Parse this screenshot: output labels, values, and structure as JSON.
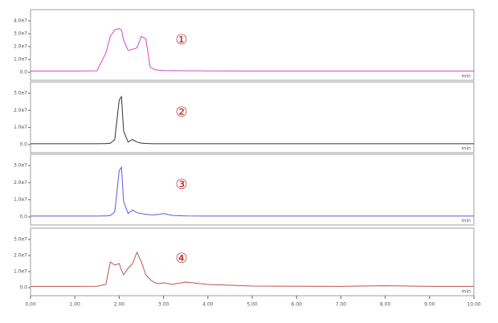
{
  "chart_data": [
    {
      "type": "line",
      "annotation": "①",
      "x_unit": "min",
      "x": [
        0,
        0.5,
        1.0,
        1.5,
        1.7,
        1.8,
        1.9,
        2.0,
        2.05,
        2.1,
        2.2,
        2.3,
        2.4,
        2.5,
        2.6,
        2.7,
        2.8,
        2.9,
        3.0,
        3.2,
        3.5,
        4.0,
        5.0,
        6.0,
        7.0,
        8.0,
        9.0,
        10.0
      ],
      "series": [
        {
          "color": "#e040c8",
          "values": [
            1000000.0,
            1000000.0,
            1000000.0,
            1200000.0,
            15000000.0,
            28000000.0,
            33000000.0,
            34000000.0,
            33000000.0,
            25000000.0,
            17000000.0,
            18000000.0,
            19000000.0,
            28000000.0,
            26000000.0,
            4000000.0,
            2000000.0,
            1600000.0,
            1400000.0,
            1300000.0,
            1200000.0,
            1100000.0,
            1000000.0,
            1000000.0,
            1000000.0,
            1000000.0,
            1000000.0,
            1000000.0
          ]
        }
      ],
      "xlim": [
        0,
        10
      ],
      "ylim": [
        0,
        40000000.0
      ],
      "yticks": [
        {
          "value": 0,
          "label": "0.0"
        },
        {
          "value": 10000000.0,
          "label": "1.0e7"
        },
        {
          "value": 20000000.0,
          "label": "2.0e7"
        },
        {
          "value": 30000000.0,
          "label": "3.0e7"
        },
        {
          "value": 40000000.0,
          "label": "4.0e7"
        }
      ]
    },
    {
      "type": "line",
      "annotation": "②",
      "x_unit": "min",
      "x": [
        0,
        0.5,
        1.0,
        1.5,
        1.7,
        1.8,
        1.9,
        2.0,
        2.05,
        2.1,
        2.2,
        2.3,
        2.4,
        2.5,
        2.6,
        2.7,
        2.8,
        2.9,
        3.0,
        3.2,
        3.5,
        4.0,
        5.0,
        6.0,
        7.0,
        8.0,
        9.0,
        10.0
      ],
      "series": [
        {
          "color": "#333333",
          "values": [
            500000.0,
            500000.0,
            500000.0,
            500000.0,
            600000.0,
            800000.0,
            3000000.0,
            26000000.0,
            28000000.0,
            8000000.0,
            1500000.0,
            3000000.0,
            1500000.0,
            900000.0,
            700000.0,
            600000.0,
            500000.0,
            500000.0,
            500000.0,
            500000.0,
            500000.0,
            500000.0,
            500000.0,
            500000.0,
            500000.0,
            500000.0,
            500000.0,
            500000.0
          ]
        }
      ],
      "xlim": [
        0,
        10
      ],
      "ylim": [
        0,
        30000000.0
      ],
      "yticks": [
        {
          "value": 0,
          "label": "0.0"
        },
        {
          "value": 10000000.0,
          "label": "1.0e7"
        },
        {
          "value": 20000000.0,
          "label": "2.0e7"
        },
        {
          "value": 30000000.0,
          "label": "3.0e7"
        }
      ]
    },
    {
      "type": "line",
      "annotation": "③",
      "x_unit": "min",
      "x": [
        0,
        0.5,
        1.0,
        1.5,
        1.7,
        1.8,
        1.9,
        2.0,
        2.05,
        2.1,
        2.2,
        2.3,
        2.4,
        2.5,
        2.6,
        2.7,
        2.8,
        2.9,
        3.0,
        3.2,
        3.5,
        4.0,
        5.0,
        6.0,
        7.0,
        8.0,
        9.0,
        10.0
      ],
      "series": [
        {
          "color": "#5a5ae0",
          "values": [
            500000.0,
            500000.0,
            500000.0,
            500000.0,
            600000.0,
            800000.0,
            3000000.0,
            27000000.0,
            29000000.0,
            9000000.0,
            2000000.0,
            4000000.0,
            2500000.0,
            2000000.0,
            1500000.0,
            1300000.0,
            1200000.0,
            1500000.0,
            2000000.0,
            900000.0,
            600000.0,
            500000.0,
            500000.0,
            500000.0,
            500000.0,
            500000.0,
            500000.0,
            500000.0
          ]
        }
      ],
      "xlim": [
        0,
        10
      ],
      "ylim": [
        0,
        30000000.0
      ],
      "yticks": [
        {
          "value": 0,
          "label": "0.0"
        },
        {
          "value": 10000000.0,
          "label": "1.0e7"
        },
        {
          "value": 20000000.0,
          "label": "2.0e7"
        },
        {
          "value": 30000000.0,
          "label": "3.0e7"
        }
      ]
    },
    {
      "type": "line",
      "annotation": "④",
      "x_unit": "min",
      "x": [
        0,
        0.5,
        1.0,
        1.5,
        1.7,
        1.8,
        1.9,
        2.0,
        2.05,
        2.1,
        2.2,
        2.3,
        2.4,
        2.5,
        2.6,
        2.7,
        2.8,
        2.9,
        3.0,
        3.2,
        3.5,
        4.0,
        5.0,
        6.0,
        7.0,
        8.0,
        9.0,
        10.0
      ],
      "series": [
        {
          "color": "#c05050",
          "values": [
            800000.0,
            800000.0,
            800000.0,
            900000.0,
            2000000.0,
            16000000.0,
            14000000.0,
            15000000.0,
            11000000.0,
            8000000.0,
            12000000.0,
            15000000.0,
            22000000.0,
            16000000.0,
            8000000.0,
            5000000.0,
            3000000.0,
            2500000.0,
            3000000.0,
            2000000.0,
            3500000.0,
            2000000.0,
            1000000.0,
            900000.0,
            800000.0,
            1200000.0,
            800000.0,
            800000.0
          ]
        }
      ],
      "xlim": [
        0,
        10
      ],
      "ylim": [
        0,
        30000000.0
      ],
      "yticks": [
        {
          "value": 0,
          "label": "0.0"
        },
        {
          "value": 10000000.0,
          "label": "1.0e7"
        },
        {
          "value": 20000000.0,
          "label": "2.0e7"
        },
        {
          "value": 30000000.0,
          "label": "3.0e7"
        }
      ],
      "xticks": [
        {
          "value": 0,
          "label": "0.00"
        },
        {
          "value": 1,
          "label": "1.00"
        },
        {
          "value": 2,
          "label": "2.00"
        },
        {
          "value": 3,
          "label": "3.00"
        },
        {
          "value": 4,
          "label": "4.00"
        },
        {
          "value": 5,
          "label": "5.00"
        },
        {
          "value": 6,
          "label": "6.00"
        },
        {
          "value": 7,
          "label": "7.00"
        },
        {
          "value": 8,
          "label": "8.00"
        },
        {
          "value": 9,
          "label": "9.00"
        },
        {
          "value": 10,
          "label": "10.00"
        }
      ]
    }
  ]
}
